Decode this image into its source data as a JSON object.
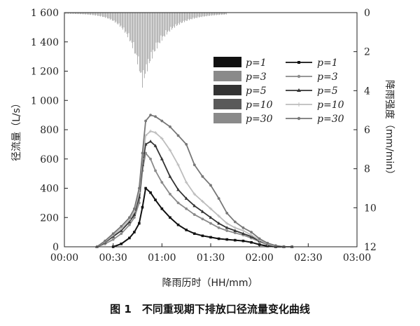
{
  "caption": "图 1　不同重现期下排放口径流量变化曲线",
  "chart_data": {
    "type": "line",
    "xlabel": "降雨历时（HH/mm）",
    "ylabel_left": "径流量（L/s）",
    "ylabel_right": "降雨强度（mm/min）",
    "x_ticks": [
      "00:00",
      "00:30",
      "01:00",
      "01:30",
      "02:00",
      "02:30",
      "03:00"
    ],
    "x_range_min": [
      0,
      180
    ],
    "y_left_ticks": [
      "0",
      "200",
      "400",
      "600",
      "800",
      "1 000",
      "1 200",
      "1 400",
      "1 600"
    ],
    "y_left_range": [
      0,
      1600
    ],
    "y_right_ticks": [
      "0",
      "2",
      "4",
      "6",
      "8",
      "10",
      "12"
    ],
    "y_right_range": [
      0,
      12
    ],
    "y_right_inverted": true,
    "legend_bars": [
      "p=1",
      "p=3",
      "p=5",
      "p=10",
      "p=30"
    ],
    "legend_lines": [
      "p=1",
      "p=3",
      "p=5",
      "p=10",
      "p=30"
    ],
    "rain_peak": {
      "x": 48,
      "y": 3.8
    },
    "series": [
      {
        "name": "p=1",
        "color": "#111111",
        "x": [
          30,
          35,
          40,
          43,
          46,
          48,
          50,
          53,
          56,
          60,
          65,
          70,
          75,
          80,
          85,
          90,
          95,
          100,
          105,
          110,
          115,
          120,
          125,
          130,
          135,
          140
        ],
        "values": [
          0,
          20,
          60,
          100,
          160,
          270,
          400,
          370,
          320,
          260,
          200,
          150,
          115,
          90,
          75,
          65,
          55,
          50,
          45,
          40,
          30,
          15,
          5,
          0,
          0,
          0
        ]
      },
      {
        "name": "p=3",
        "color": "#8a8a8a",
        "x": [
          20,
          25,
          30,
          35,
          40,
          43,
          46,
          48,
          50,
          53,
          56,
          60,
          65,
          70,
          75,
          80,
          85,
          90,
          95,
          100,
          105,
          110,
          115,
          120,
          125,
          130,
          135,
          140
        ],
        "values": [
          0,
          20,
          50,
          90,
          150,
          200,
          300,
          520,
          640,
          600,
          520,
          440,
          360,
          300,
          260,
          220,
          190,
          160,
          130,
          110,
          95,
          80,
          60,
          35,
          15,
          5,
          0,
          0
        ]
      },
      {
        "name": "p=5",
        "color": "#333333",
        "x": [
          20,
          25,
          30,
          35,
          40,
          43,
          46,
          48,
          50,
          53,
          56,
          60,
          65,
          70,
          75,
          80,
          85,
          90,
          95,
          100,
          105,
          110,
          115,
          120,
          125,
          130,
          135,
          140
        ],
        "values": [
          0,
          30,
          70,
          110,
          170,
          220,
          340,
          560,
          700,
          720,
          690,
          600,
          480,
          390,
          330,
          280,
          240,
          200,
          160,
          130,
          110,
          90,
          70,
          40,
          20,
          5,
          0,
          0
        ]
      },
      {
        "name": "p=10",
        "color": "#bdbdbd",
        "x": [
          20,
          25,
          30,
          35,
          40,
          43,
          46,
          48,
          50,
          53,
          56,
          60,
          65,
          70,
          75,
          80,
          85,
          90,
          95,
          100,
          105,
          110,
          115,
          120,
          125,
          130,
          135,
          140
        ],
        "values": [
          0,
          35,
          80,
          125,
          185,
          240,
          370,
          600,
          760,
          790,
          780,
          740,
          660,
          560,
          440,
          360,
          310,
          260,
          210,
          160,
          130,
          110,
          80,
          45,
          20,
          5,
          0,
          0
        ]
      },
      {
        "name": "p=30",
        "color": "#777777",
        "x": [
          20,
          25,
          30,
          35,
          40,
          43,
          46,
          48,
          50,
          53,
          56,
          60,
          65,
          70,
          75,
          80,
          85,
          90,
          95,
          100,
          105,
          110,
          115,
          120,
          125,
          130,
          135,
          140
        ],
        "values": [
          0,
          40,
          90,
          140,
          200,
          260,
          400,
          640,
          860,
          900,
          890,
          860,
          820,
          760,
          700,
          560,
          480,
          420,
          330,
          230,
          170,
          130,
          100,
          55,
          25,
          8,
          0,
          0
        ]
      }
    ]
  }
}
